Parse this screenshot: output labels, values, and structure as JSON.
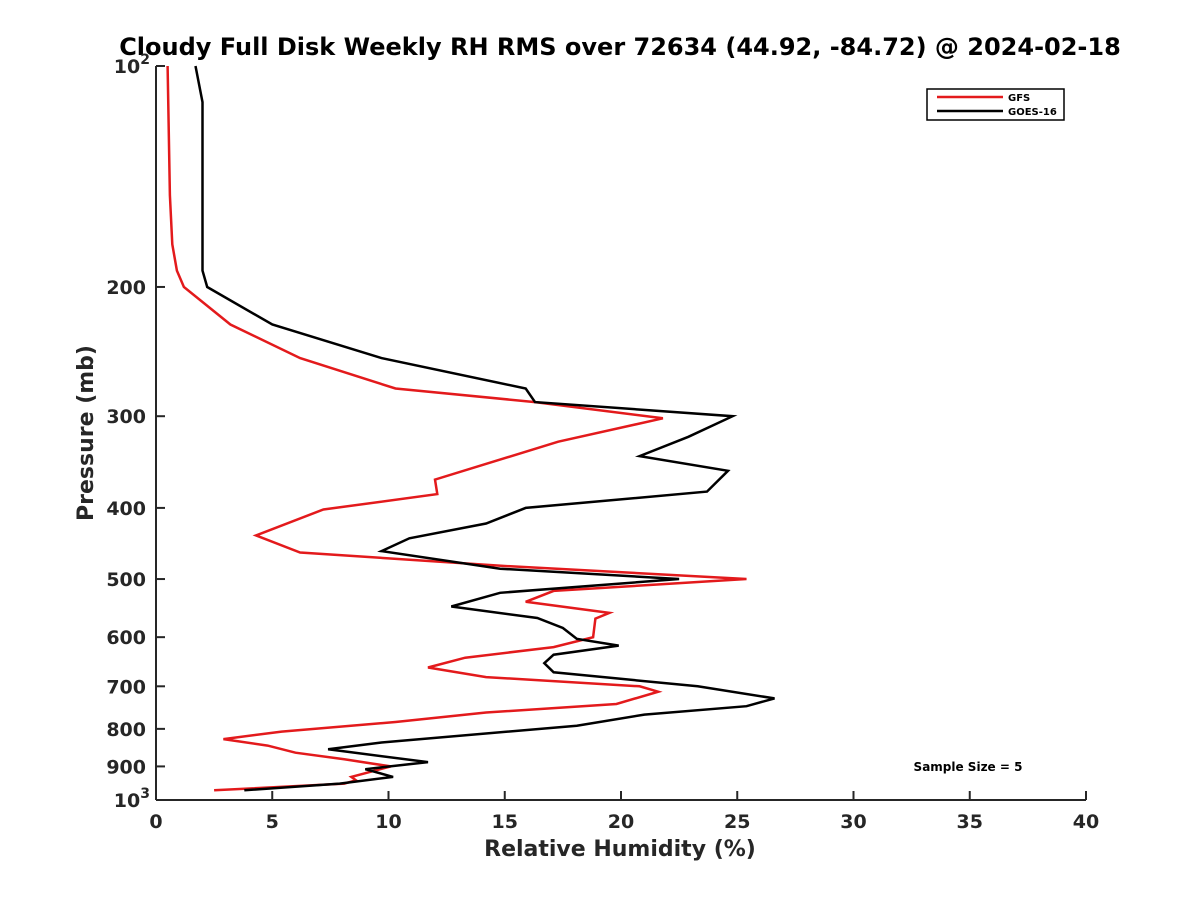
{
  "chart_data": {
    "type": "line",
    "title": "Cloudy Full Disk Weekly RH RMS over 72634 (44.92, -84.72) @ 2024-02-18",
    "xlabel": "Relative Humidity (%)",
    "ylabel": "Pressure (mb)",
    "xlim": [
      0,
      40
    ],
    "ylim": [
      100,
      1000
    ],
    "y_scale": "log",
    "y_reversed": true,
    "grid": false,
    "legend_position": "top-right",
    "x_ticks": [
      {
        "value": 0,
        "label": "0"
      },
      {
        "value": 5,
        "label": "5"
      },
      {
        "value": 10,
        "label": "10"
      },
      {
        "value": 15,
        "label": "15"
      },
      {
        "value": 20,
        "label": "20"
      },
      {
        "value": 25,
        "label": "25"
      },
      {
        "value": 30,
        "label": "30"
      },
      {
        "value": 35,
        "label": "35"
      },
      {
        "value": 40,
        "label": "40"
      }
    ],
    "y_ticks": [
      {
        "value": 100,
        "label": "10",
        "sup": "2"
      },
      {
        "value": 200,
        "label": "200",
        "sup": ""
      },
      {
        "value": 300,
        "label": "300",
        "sup": ""
      },
      {
        "value": 400,
        "label": "400",
        "sup": ""
      },
      {
        "value": 500,
        "label": "500",
        "sup": ""
      },
      {
        "value": 600,
        "label": "600",
        "sup": ""
      },
      {
        "value": 700,
        "label": "700",
        "sup": ""
      },
      {
        "value": 800,
        "label": "800",
        "sup": ""
      },
      {
        "value": 900,
        "label": "900",
        "sup": ""
      },
      {
        "value": 1000,
        "label": "10",
        "sup": "3"
      }
    ],
    "annotation": "Sample Size = 5",
    "series": [
      {
        "name": "GFS",
        "color": "#e31a1c",
        "points": [
          [
            0.5,
            100
          ],
          [
            0.6,
            150
          ],
          [
            0.7,
            175
          ],
          [
            0.9,
            190
          ],
          [
            1.2,
            200
          ],
          [
            3.2,
            225
          ],
          [
            6.2,
            250
          ],
          [
            10.3,
            275
          ],
          [
            16.3,
            287
          ],
          [
            21.8,
            302
          ],
          [
            17.3,
            325
          ],
          [
            12.0,
            366
          ],
          [
            12.1,
            383
          ],
          [
            7.2,
            402
          ],
          [
            4.3,
            436
          ],
          [
            6.2,
            460
          ],
          [
            15.0,
            480
          ],
          [
            25.4,
            500
          ],
          [
            17.1,
            519
          ],
          [
            15.9,
            537
          ],
          [
            19.5,
            556
          ],
          [
            18.9,
            566
          ],
          [
            18.8,
            600
          ],
          [
            17.1,
            619
          ],
          [
            13.3,
            640
          ],
          [
            11.7,
            660
          ],
          [
            14.2,
            680
          ],
          [
            20.8,
            700
          ],
          [
            21.6,
            712
          ],
          [
            19.8,
            740
          ],
          [
            14.2,
            760
          ],
          [
            10.3,
            783
          ],
          [
            5.4,
            807
          ],
          [
            2.9,
            826
          ],
          [
            4.8,
            843
          ],
          [
            6.0,
            862
          ],
          [
            8.1,
            880
          ],
          [
            10.1,
            900
          ],
          [
            8.4,
            930
          ],
          [
            8.6,
            940
          ],
          [
            8.1,
            950
          ],
          [
            2.5,
            970
          ]
        ]
      },
      {
        "name": "GOES-16",
        "color": "#000000",
        "points": [
          [
            1.7,
            100
          ],
          [
            2.0,
            112
          ],
          [
            2.0,
            150
          ],
          [
            2.0,
            175
          ],
          [
            2.0,
            190
          ],
          [
            2.2,
            200
          ],
          [
            5.0,
            225
          ],
          [
            9.7,
            250
          ],
          [
            15.9,
            275
          ],
          [
            16.3,
            287
          ],
          [
            24.8,
            300
          ],
          [
            22.9,
            320
          ],
          [
            20.8,
            340
          ],
          [
            24.6,
            356
          ],
          [
            23.7,
            380
          ],
          [
            15.9,
            400
          ],
          [
            14.2,
            420
          ],
          [
            10.9,
            440
          ],
          [
            9.7,
            458
          ],
          [
            14.8,
            484
          ],
          [
            22.5,
            500
          ],
          [
            14.8,
            522
          ],
          [
            12.7,
            545
          ],
          [
            16.4,
            565
          ],
          [
            17.5,
            583
          ],
          [
            18.1,
            603
          ],
          [
            19.9,
            616
          ],
          [
            17.1,
            634
          ],
          [
            16.7,
            651
          ],
          [
            17.1,
            670
          ],
          [
            23.3,
            700
          ],
          [
            26.6,
            727
          ],
          [
            25.4,
            745
          ],
          [
            21.0,
            765
          ],
          [
            18.1,
            792
          ],
          [
            9.7,
            835
          ],
          [
            7.4,
            853
          ],
          [
            11.7,
            888
          ],
          [
            9.0,
            908
          ],
          [
            10.2,
            930
          ],
          [
            7.9,
            950
          ],
          [
            3.8,
            970
          ]
        ]
      }
    ]
  }
}
